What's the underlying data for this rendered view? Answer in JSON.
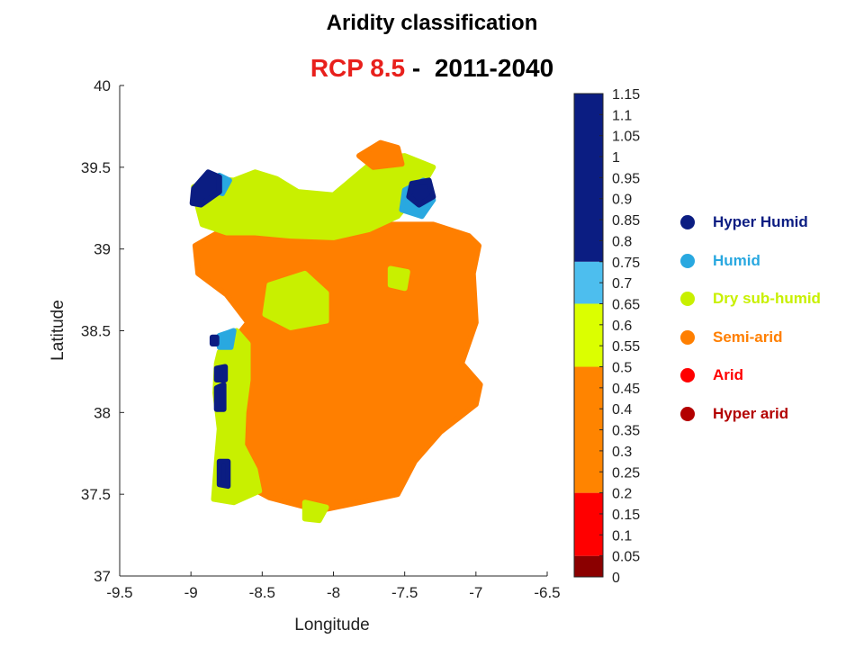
{
  "title": "Aridity classification",
  "subtitle": {
    "scenario": "RCP 8.5",
    "separator": " -  ",
    "period": "2011-2040"
  },
  "chart_data": {
    "type": "scatter",
    "xlabel": "Longitude",
    "ylabel": "Latitude",
    "xlim": [
      -9.5,
      -6.5
    ],
    "ylim": [
      37,
      40
    ],
    "xticks": [
      -9.5,
      -9,
      -8.5,
      -8,
      -7.5,
      -7,
      -6.5
    ],
    "yticks": [
      37,
      37.5,
      38,
      38.5,
      39,
      39.5,
      40
    ],
    "xtick_labels": [
      "-9.5",
      "-9",
      "-8.5",
      "-8",
      "-7.5",
      "-7",
      "-6.5"
    ],
    "ytick_labels": [
      "37",
      "37.5",
      "38",
      "38.5",
      "39",
      "39.5",
      "40"
    ],
    "grid": false,
    "colorbar": {
      "range": [
        0,
        1.15
      ],
      "tick_labels": [
        "0",
        "0.05",
        "0.1",
        "0.15",
        "0.2",
        "0.25",
        "0.3",
        "0.35",
        "0.4",
        "0.45",
        "0.5",
        "0.55",
        "0.6",
        "0.65",
        "0.7",
        "0.75",
        "0.8",
        "0.85",
        "0.9",
        "0.95",
        "1",
        "1.05",
        "1.1",
        "1.15"
      ],
      "bands": [
        {
          "from": 0,
          "to": 0.05,
          "color": "#8b0000"
        },
        {
          "from": 0.05,
          "to": 0.2,
          "color": "#ff0000"
        },
        {
          "from": 0.2,
          "to": 0.5,
          "color": "#ff8400"
        },
        {
          "from": 0.5,
          "to": 0.65,
          "color": "#dbff00"
        },
        {
          "from": 0.65,
          "to": 0.75,
          "color": "#4dbeee"
        },
        {
          "from": 0.75,
          "to": 1.15,
          "color": "#0b1d82"
        }
      ]
    },
    "classes": [
      {
        "name": "Hyper Humid",
        "color": "#0b1d82"
      },
      {
        "name": "Humid",
        "color": "#29a8e0"
      },
      {
        "name": "Dry sub-humid",
        "color": "#c8f000"
      },
      {
        "name": "Semi-arid",
        "color": "#ff7f00"
      },
      {
        "name": "Arid",
        "color": "#ff0000"
      },
      {
        "name": "Hyper arid",
        "color": "#b30000"
      }
    ],
    "regions": [
      {
        "class": "Semi-arid",
        "polygon": [
          [
            -8.97,
            39.02
          ],
          [
            -8.75,
            39.13
          ],
          [
            -8.45,
            39.12
          ],
          [
            -8.2,
            39.08
          ],
          [
            -7.9,
            39.12
          ],
          [
            -7.6,
            39.15
          ],
          [
            -7.3,
            39.15
          ],
          [
            -7.05,
            39.08
          ],
          [
            -6.98,
            39.02
          ],
          [
            -7.02,
            38.85
          ],
          [
            -7.0,
            38.55
          ],
          [
            -7.1,
            38.3
          ],
          [
            -6.97,
            38.17
          ],
          [
            -7.0,
            38.05
          ],
          [
            -7.25,
            37.88
          ],
          [
            -7.43,
            37.7
          ],
          [
            -7.55,
            37.5
          ],
          [
            -7.82,
            37.45
          ],
          [
            -8.1,
            37.4
          ],
          [
            -8.45,
            37.48
          ],
          [
            -8.6,
            37.55
          ],
          [
            -8.75,
            37.7
          ],
          [
            -8.73,
            38.0
          ],
          [
            -8.72,
            38.42
          ],
          [
            -8.6,
            38.55
          ],
          [
            -8.75,
            38.72
          ],
          [
            -8.95,
            38.85
          ]
        ]
      },
      {
        "class": "Dry sub-humid",
        "polygon": [
          [
            -8.98,
            39.38
          ],
          [
            -8.85,
            39.43
          ],
          [
            -8.7,
            39.42
          ],
          [
            -8.55,
            39.47
          ],
          [
            -8.4,
            39.43
          ],
          [
            -8.25,
            39.35
          ],
          [
            -8.0,
            39.33
          ],
          [
            -7.85,
            39.44
          ],
          [
            -7.7,
            39.55
          ],
          [
            -7.5,
            39.57
          ],
          [
            -7.3,
            39.5
          ],
          [
            -7.38,
            39.38
          ],
          [
            -7.55,
            39.2
          ],
          [
            -7.75,
            39.12
          ],
          [
            -8.0,
            39.07
          ],
          [
            -8.3,
            39.08
          ],
          [
            -8.55,
            39.1
          ],
          [
            -8.75,
            39.1
          ],
          [
            -8.92,
            39.15
          ],
          [
            -8.95,
            39.25
          ]
        ]
      },
      {
        "class": "Semi-arid",
        "polygon": [
          [
            -7.82,
            39.57
          ],
          [
            -7.67,
            39.65
          ],
          [
            -7.55,
            39.62
          ],
          [
            -7.52,
            39.52
          ],
          [
            -7.72,
            39.5
          ]
        ]
      },
      {
        "class": "Dry sub-humid",
        "polygon": [
          [
            -8.45,
            38.78
          ],
          [
            -8.2,
            38.85
          ],
          [
            -8.05,
            38.73
          ],
          [
            -8.05,
            38.56
          ],
          [
            -8.3,
            38.52
          ],
          [
            -8.48,
            38.6
          ]
        ]
      },
      {
        "class": "Dry sub-humid",
        "polygon": [
          [
            -7.6,
            38.88
          ],
          [
            -7.48,
            38.86
          ],
          [
            -7.5,
            38.76
          ],
          [
            -7.6,
            38.78
          ]
        ]
      },
      {
        "class": "Dry sub-humid",
        "polygon": [
          [
            -8.8,
            38.37
          ],
          [
            -8.68,
            38.5
          ],
          [
            -8.6,
            38.42
          ],
          [
            -8.6,
            38.2
          ],
          [
            -8.63,
            38.0
          ],
          [
            -8.64,
            37.8
          ],
          [
            -8.55,
            37.65
          ],
          [
            -8.52,
            37.52
          ],
          [
            -8.7,
            37.45
          ],
          [
            -8.84,
            37.47
          ],
          [
            -8.82,
            37.7
          ],
          [
            -8.8,
            37.9
          ],
          [
            -8.83,
            38.12
          ],
          [
            -8.82,
            38.3
          ]
        ]
      },
      {
        "class": "Dry sub-humid",
        "polygon": [
          [
            -8.2,
            37.45
          ],
          [
            -8.05,
            37.42
          ],
          [
            -8.1,
            37.34
          ],
          [
            -8.2,
            37.35
          ]
        ]
      },
      {
        "class": "Humid",
        "polygon": [
          [
            -7.5,
            39.36
          ],
          [
            -7.37,
            39.42
          ],
          [
            -7.3,
            39.3
          ],
          [
            -7.38,
            39.2
          ],
          [
            -7.52,
            39.24
          ]
        ]
      },
      {
        "class": "Hyper Humid",
        "polygon": [
          [
            -7.45,
            39.4
          ],
          [
            -7.33,
            39.42
          ],
          [
            -7.3,
            39.32
          ],
          [
            -7.4,
            39.27
          ],
          [
            -7.47,
            39.32
          ]
        ]
      },
      {
        "class": "Humid",
        "polygon": [
          [
            -8.8,
            39.45
          ],
          [
            -8.73,
            39.42
          ],
          [
            -8.78,
            39.34
          ],
          [
            -8.88,
            39.37
          ]
        ]
      },
      {
        "class": "Hyper Humid",
        "polygon": [
          [
            -8.98,
            39.37
          ],
          [
            -8.88,
            39.47
          ],
          [
            -8.8,
            39.44
          ],
          [
            -8.8,
            39.35
          ],
          [
            -8.93,
            39.27
          ],
          [
            -8.99,
            39.28
          ]
        ]
      },
      {
        "class": "Hyper Humid",
        "polygon": [
          [
            -8.8,
            37.7
          ],
          [
            -8.74,
            37.7
          ],
          [
            -8.74,
            37.55
          ],
          [
            -8.8,
            37.56
          ]
        ]
      },
      {
        "class": "Hyper Humid",
        "polygon": [
          [
            -8.82,
            38.15
          ],
          [
            -8.77,
            38.17
          ],
          [
            -8.77,
            38.02
          ],
          [
            -8.82,
            38.02
          ]
        ]
      },
      {
        "class": "Hyper Humid",
        "polygon": [
          [
            -8.82,
            38.27
          ],
          [
            -8.76,
            38.28
          ],
          [
            -8.76,
            38.2
          ],
          [
            -8.82,
            38.2
          ]
        ]
      },
      {
        "class": "Humid",
        "polygon": [
          [
            -8.8,
            38.47
          ],
          [
            -8.7,
            38.5
          ],
          [
            -8.72,
            38.4
          ],
          [
            -8.8,
            38.4
          ]
        ]
      },
      {
        "class": "Hyper Humid",
        "polygon": [
          [
            -8.85,
            38.46
          ],
          [
            -8.82,
            38.46
          ],
          [
            -8.82,
            38.42
          ],
          [
            -8.85,
            38.42
          ]
        ]
      }
    ]
  }
}
